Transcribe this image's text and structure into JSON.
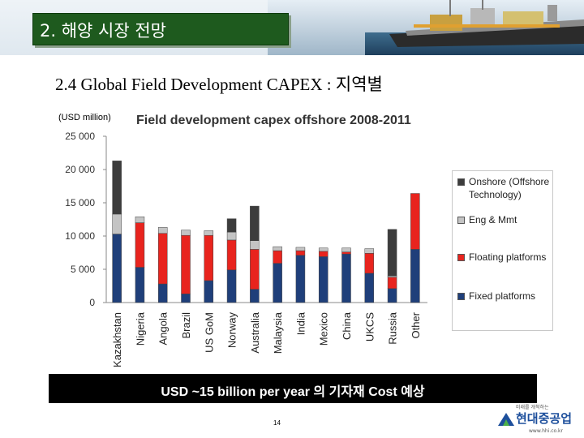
{
  "header": {
    "section_title": "2. 해양 시장 전망",
    "subtitle": "2.4 Global Field Development CAPEX : 지역별"
  },
  "chart_data": {
    "type": "bar",
    "stacked": true,
    "title": "Field development capex offshore 2008-2011",
    "unit_label": "(USD million)",
    "ylim": [
      0,
      25000
    ],
    "yticks": [
      0,
      5000,
      10000,
      15000,
      20000,
      25000
    ],
    "ytick_labels": [
      "0",
      "5 000",
      "10 000",
      "15 000",
      "20 000",
      "25 000"
    ],
    "grid": false,
    "legend_position": "right",
    "categories": [
      "Kazakhstan",
      "Nigeria",
      "Angola",
      "Brazil",
      "US GoM",
      "Norway",
      "Australia",
      "Malaysia",
      "India",
      "Mexico",
      "China",
      "UKCS",
      "Russia",
      "Other"
    ],
    "series": [
      {
        "name": "Fixed platforms",
        "color": "#1f3f7a",
        "values": [
          10300,
          5300,
          2800,
          1300,
          3300,
          4900,
          2000,
          5900,
          7100,
          6900,
          7300,
          4400,
          2100,
          8000
        ]
      },
      {
        "name": "Floating platforms",
        "color": "#e8241e",
        "values": [
          0,
          6700,
          7600,
          8800,
          6800,
          4500,
          6000,
          1900,
          700,
          800,
          300,
          3000,
          1700,
          8400
        ]
      },
      {
        "name": "Eng & Mmt",
        "color": "#c4c4c4",
        "values": [
          3000,
          900,
          900,
          800,
          700,
          1200,
          1300,
          600,
          500,
          500,
          600,
          700,
          200,
          0
        ]
      },
      {
        "name": "Onshore (Offshore Technology)",
        "color": "#3c3c3c",
        "values": [
          8000,
          0,
          0,
          0,
          0,
          2000,
          5200,
          0,
          0,
          0,
          0,
          0,
          7000,
          0
        ]
      }
    ],
    "legend": [
      {
        "label": "Onshore (Offshore Technology)",
        "color": "#3c3c3c"
      },
      {
        "label": "Eng & Mmt",
        "color": "#c4c4c4"
      },
      {
        "label": "Floating platforms",
        "color": "#e8241e"
      },
      {
        "label": "Fixed platforms",
        "color": "#1f3f7a"
      }
    ]
  },
  "banner": {
    "text": "USD ~15 billion per year 의 기자재 Cost 예상"
  },
  "footer": {
    "page_number": "14",
    "logo_tagline": "미래를 개척하는",
    "logo_name": "현대중공업",
    "logo_url": "www.hhi.co.kr"
  }
}
